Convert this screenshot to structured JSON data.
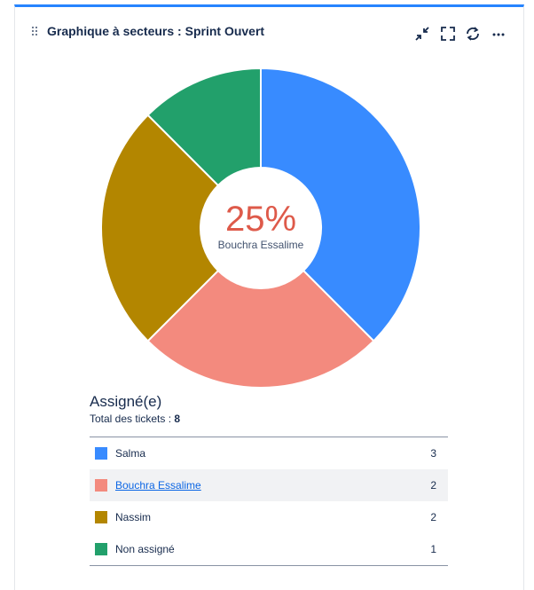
{
  "gadget": {
    "title": "Graphique à secteurs : Sprint Ouvert",
    "accent_color": "#2684ff",
    "icons": [
      "drag-handle-icon",
      "minimize-icon",
      "fullscreen-icon",
      "refresh-icon",
      "more-icon"
    ]
  },
  "center": {
    "percent": "25%",
    "name": "Bouchra Essalime"
  },
  "legend": {
    "title": "Assigné(e)",
    "total_label": "Total des tickets : ",
    "total_value": "8",
    "rows": [
      {
        "label": "Salma",
        "count": "3",
        "color": "#388bff"
      },
      {
        "label": "Bouchra Essalime",
        "count": "2",
        "color": "#f38a7e"
      },
      {
        "label": "Nassim",
        "count": "2",
        "color": "#b38600"
      },
      {
        "label": "Non assigné",
        "count": "1",
        "color": "#22a06b"
      }
    ]
  },
  "chart_data": {
    "type": "pie",
    "categories": [
      "Salma",
      "Bouchra Essalime",
      "Nassim",
      "Non assigné"
    ],
    "values": [
      3,
      2,
      2,
      1
    ],
    "colors": [
      "#388bff",
      "#f38a7e",
      "#b38600",
      "#22a06b"
    ],
    "donut": true,
    "highlighted": "Bouchra Essalime",
    "title": "",
    "legend": "bottom"
  }
}
